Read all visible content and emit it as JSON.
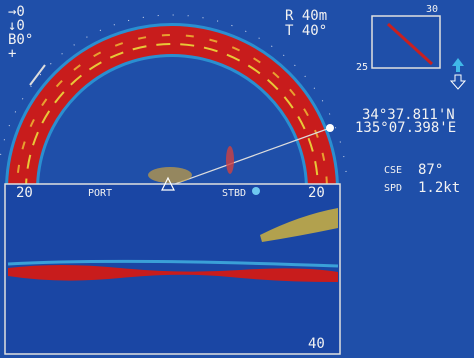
{
  "top_left": {
    "lines": [
      "→0",
      "↓0",
      "B0°",
      "+"
    ]
  },
  "range": {
    "range": "R 40m",
    "tilt": "T 40°"
  },
  "compass": {
    "top_label": "30",
    "left_label": "25"
  },
  "position": {
    "latitude": "34°37.811'N",
    "longitude": "135°07.398'E"
  },
  "course": {
    "label": "CSE",
    "value": "87°"
  },
  "speed": {
    "label": "SPD",
    "value": "1.2kt"
  },
  "side_view": {
    "left_range": "20",
    "port": "PORT",
    "starboard": "STBD",
    "right_range": "20",
    "depth": "40"
  }
}
